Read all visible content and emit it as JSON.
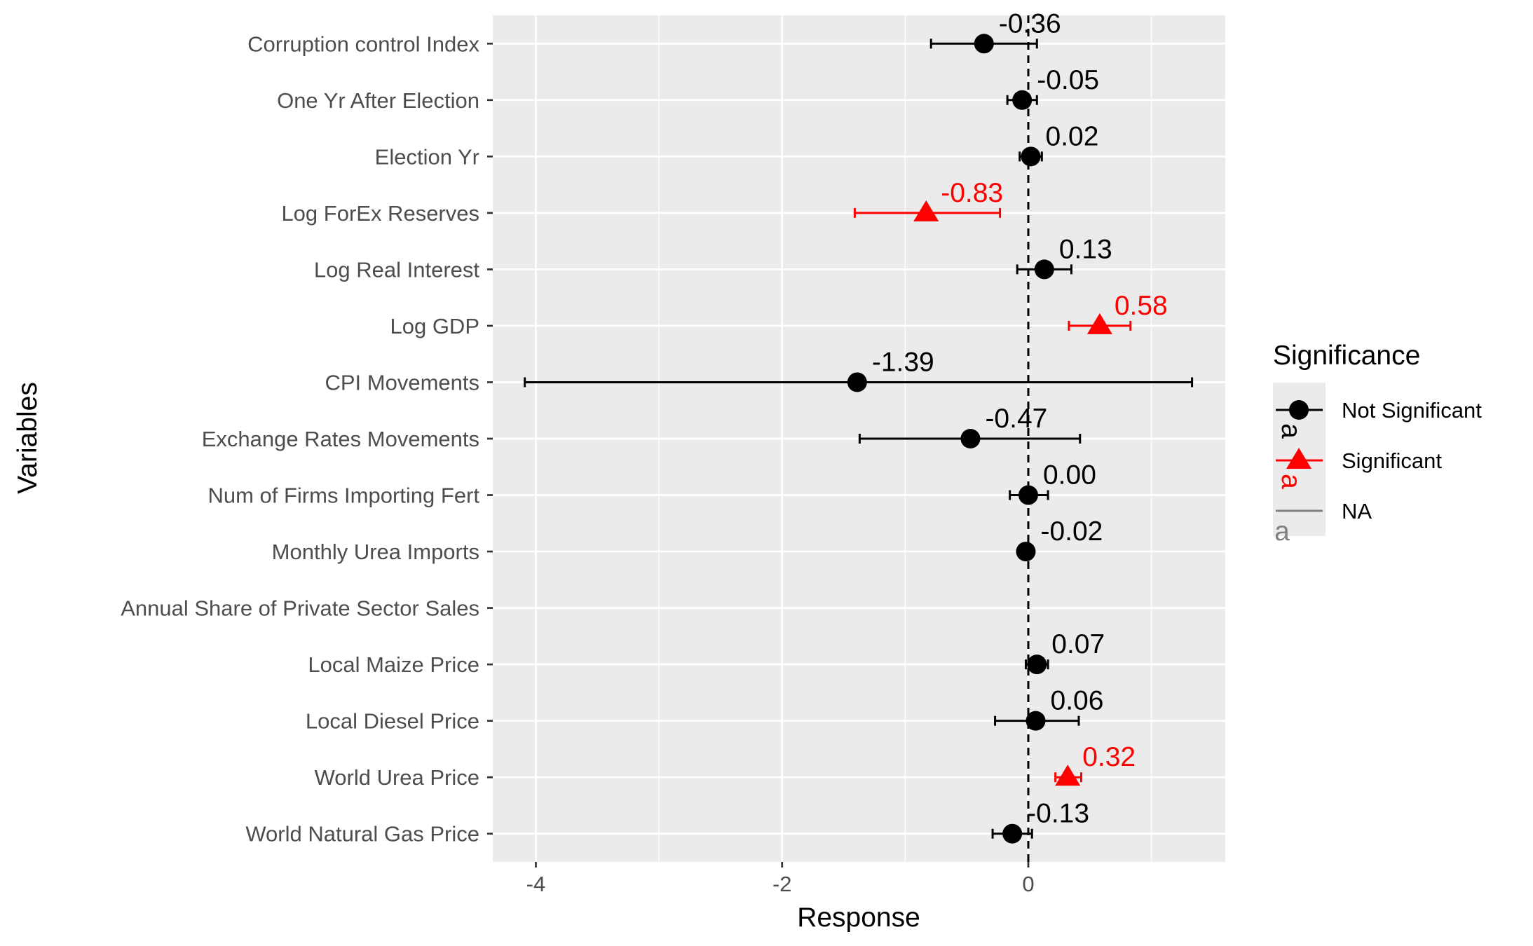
{
  "chart_data": {
    "type": "scatter",
    "xlabel": "Response",
    "ylabel": "Variables",
    "xlim": [
      -4.35,
      1.6
    ],
    "x_ticks": [
      -4,
      -2,
      0
    ],
    "x_tick_labels": [
      "-4",
      "-2",
      "0"
    ],
    "x_minor_ticks": [
      -3,
      -1,
      1
    ],
    "reference_line_x": 0,
    "grid": true,
    "legend": {
      "title": "Significance",
      "position": "right",
      "entries": [
        {
          "label": "Not Significant",
          "shape": "circle",
          "color": "#000000"
        },
        {
          "label": "Significant",
          "shape": "triangle",
          "color": "#ff0000"
        },
        {
          "label": "NA",
          "shape": "line",
          "color": "#808080"
        }
      ],
      "key_letter": "a"
    },
    "categories": [
      "Corruption control Index",
      "One Yr After Election",
      "Election Yr",
      "Log ForEx Reserves",
      "Log Real Interest",
      "Log GDP",
      "CPI Movements",
      "Exchange Rates Movements",
      "Num of Firms Importing Fert",
      "Monthly Urea Imports",
      "Annual Share of Private Sector Sales",
      "Local Maize Price",
      "Local Diesel Price",
      "World Urea Price",
      "World Natural Gas Price"
    ],
    "points": [
      {
        "variable": "Corruption control Index",
        "estimate": -0.36,
        "lower": -0.79,
        "upper": 0.07,
        "significance": "Not Significant",
        "label": "-0.36"
      },
      {
        "variable": "One Yr After Election",
        "estimate": -0.05,
        "lower": -0.17,
        "upper": 0.07,
        "significance": "Not Significant",
        "label": "-0.05"
      },
      {
        "variable": "Election Yr",
        "estimate": 0.02,
        "lower": -0.07,
        "upper": 0.11,
        "significance": "Not Significant",
        "label": "0.02"
      },
      {
        "variable": "Log ForEx Reserves",
        "estimate": -0.83,
        "lower": -1.41,
        "upper": -0.23,
        "significance": "Significant",
        "label": "-0.83"
      },
      {
        "variable": "Log Real Interest",
        "estimate": 0.13,
        "lower": -0.09,
        "upper": 0.35,
        "significance": "Not Significant",
        "label": "0.13"
      },
      {
        "variable": "Log GDP",
        "estimate": 0.58,
        "lower": 0.33,
        "upper": 0.83,
        "significance": "Significant",
        "label": "0.58"
      },
      {
        "variable": "CPI Movements",
        "estimate": -1.39,
        "lower": -4.09,
        "upper": 1.33,
        "significance": "Not Significant",
        "label": "-1.39"
      },
      {
        "variable": "Exchange Rates Movements",
        "estimate": -0.47,
        "lower": -1.37,
        "upper": 0.42,
        "significance": "Not Significant",
        "label": "-0.47"
      },
      {
        "variable": "Num of Firms Importing Fert",
        "estimate": 0.0,
        "lower": -0.15,
        "upper": 0.16,
        "significance": "Not Significant",
        "label": "0.00"
      },
      {
        "variable": "Monthly Urea Imports",
        "estimate": -0.02,
        "lower": -0.03,
        "upper": 0.0,
        "significance": "Not Significant",
        "label": "-0.02"
      },
      {
        "variable": "Annual Share of Private Sector Sales",
        "estimate": null,
        "lower": null,
        "upper": null,
        "significance": "NA",
        "label": ""
      },
      {
        "variable": "Local Maize Price",
        "estimate": 0.07,
        "lower": -0.02,
        "upper": 0.16,
        "significance": "Not Significant",
        "label": "0.07"
      },
      {
        "variable": "Local Diesel Price",
        "estimate": 0.06,
        "lower": -0.27,
        "upper": 0.41,
        "significance": "Not Significant",
        "label": "0.06"
      },
      {
        "variable": "World Urea Price",
        "estimate": 0.32,
        "lower": 0.22,
        "upper": 0.43,
        "significance": "Significant",
        "label": "0.32"
      },
      {
        "variable": "World Natural Gas Price",
        "estimate": -0.13,
        "lower": -0.29,
        "upper": 0.03,
        "significance": "Not Significant",
        "label": "-0.13"
      }
    ]
  }
}
